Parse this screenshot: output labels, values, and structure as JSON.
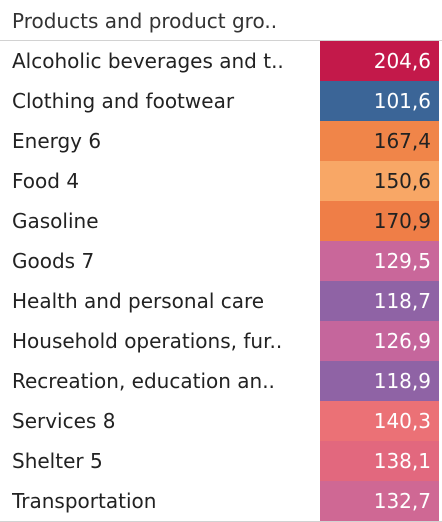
{
  "table": {
    "column_header": "Products and product gro.."
  },
  "chart_data": {
    "type": "heatmap",
    "title": "",
    "row_header": "Products and product gro..",
    "categories": [
      "Alcoholic beverages and t..",
      "Clothing and footwear",
      "Energy 6",
      "Food 4",
      "Gasoline",
      "Goods 7",
      "Health and personal care",
      "Household operations, fur..",
      "Recreation, education an..",
      "Services 8",
      "Shelter 5",
      "Transportation"
    ],
    "values": [
      204.6,
      101.6,
      167.4,
      150.6,
      170.9,
      129.5,
      118.7,
      126.9,
      118.9,
      140.3,
      138.1,
      132.7
    ],
    "value_labels": [
      "204,6",
      "101,6",
      "167,4",
      "150,6",
      "170,9",
      "129,5",
      "118,7",
      "126,9",
      "118,9",
      "140,3",
      "138,1",
      "132,7"
    ],
    "cell_colors": [
      "#c3194a",
      "#3b6597",
      "#f08549",
      "#f8a766",
      "#ef7e47",
      "#c9679a",
      "#8f63a5",
      "#c5669c",
      "#8f63a5",
      "#eb7176",
      "#e2687e",
      "#cf6894"
    ],
    "label_colors": [
      "#ffffff",
      "#ffffff",
      "#222222",
      "#222222",
      "#222222",
      "#ffffff",
      "#ffffff",
      "#ffffff",
      "#ffffff",
      "#ffffff",
      "#ffffff",
      "#ffffff"
    ]
  }
}
